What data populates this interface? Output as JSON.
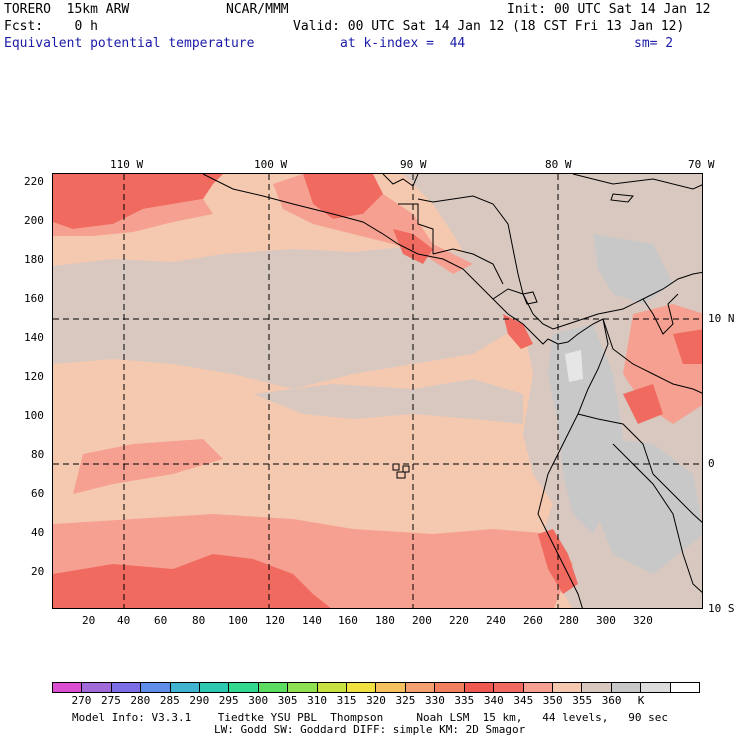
{
  "header": {
    "model": "TORERO  15km ARW",
    "center": "NCAR/MMM",
    "init": "Init: 00 UTC Sat 14 Jan 12",
    "fcst": "Fcst:    0 h",
    "valid": "Valid: 00 UTC Sat 14 Jan 12 (18 CST Fri 13 Jan 12)",
    "field": "Equivalent potential temperature",
    "level": "at k-index =  44",
    "smooth": "sm= 2"
  },
  "top_axis": [
    "110 W",
    "100 W",
    "90 W",
    "80 W",
    "70 W"
  ],
  "right_axis": [
    "10 N",
    "0",
    "10 S"
  ],
  "left_axis": [
    "220",
    "200",
    "180",
    "160",
    "140",
    "120",
    "100",
    "80",
    "60",
    "40",
    "20"
  ],
  "bottom_axis": [
    "20",
    "40",
    "60",
    "80",
    "100",
    "120",
    "140",
    "160",
    "180",
    "200",
    "220",
    "240",
    "260",
    "280",
    "300",
    "320"
  ],
  "colorbar": {
    "colors": [
      "#d94fd0",
      "#a06ad8",
      "#7c6fe6",
      "#5e8ee8",
      "#3fb3d0",
      "#2cc9b0",
      "#30d890",
      "#5cdc60",
      "#8ee050",
      "#c8e040",
      "#f0e040",
      "#f5c060",
      "#f5a070",
      "#f08060",
      "#ee5a50",
      "#f06a60",
      "#f5a090",
      "#f5c8b0",
      "#d8c8c0",
      "#c8c8c8",
      "#dcdcdc",
      "#ffffff"
    ],
    "labels": [
      "270",
      "275",
      "280",
      "285",
      "290",
      "295",
      "300",
      "305",
      "310",
      "315",
      "320",
      "325",
      "330",
      "335",
      "340",
      "345",
      "350",
      "355",
      "360",
      "K"
    ],
    "shading_levels": {
      "c340": "#f5c8b0",
      "c345": "#d8c8c0",
      "c335": "#f5a090",
      "c330": "#f06a60",
      "c350": "#c8c8c8",
      "c355": "#e6e6e6"
    }
  },
  "footer": {
    "line1": "Model Info: V3.3.1    Tiedtke YSU PBL  Thompson     Noah LSM  15 km,   44 levels,   90 sec",
    "line2": "LW: Godd SW: Goddard DIFF: simple KM: 2D Smagor"
  }
}
